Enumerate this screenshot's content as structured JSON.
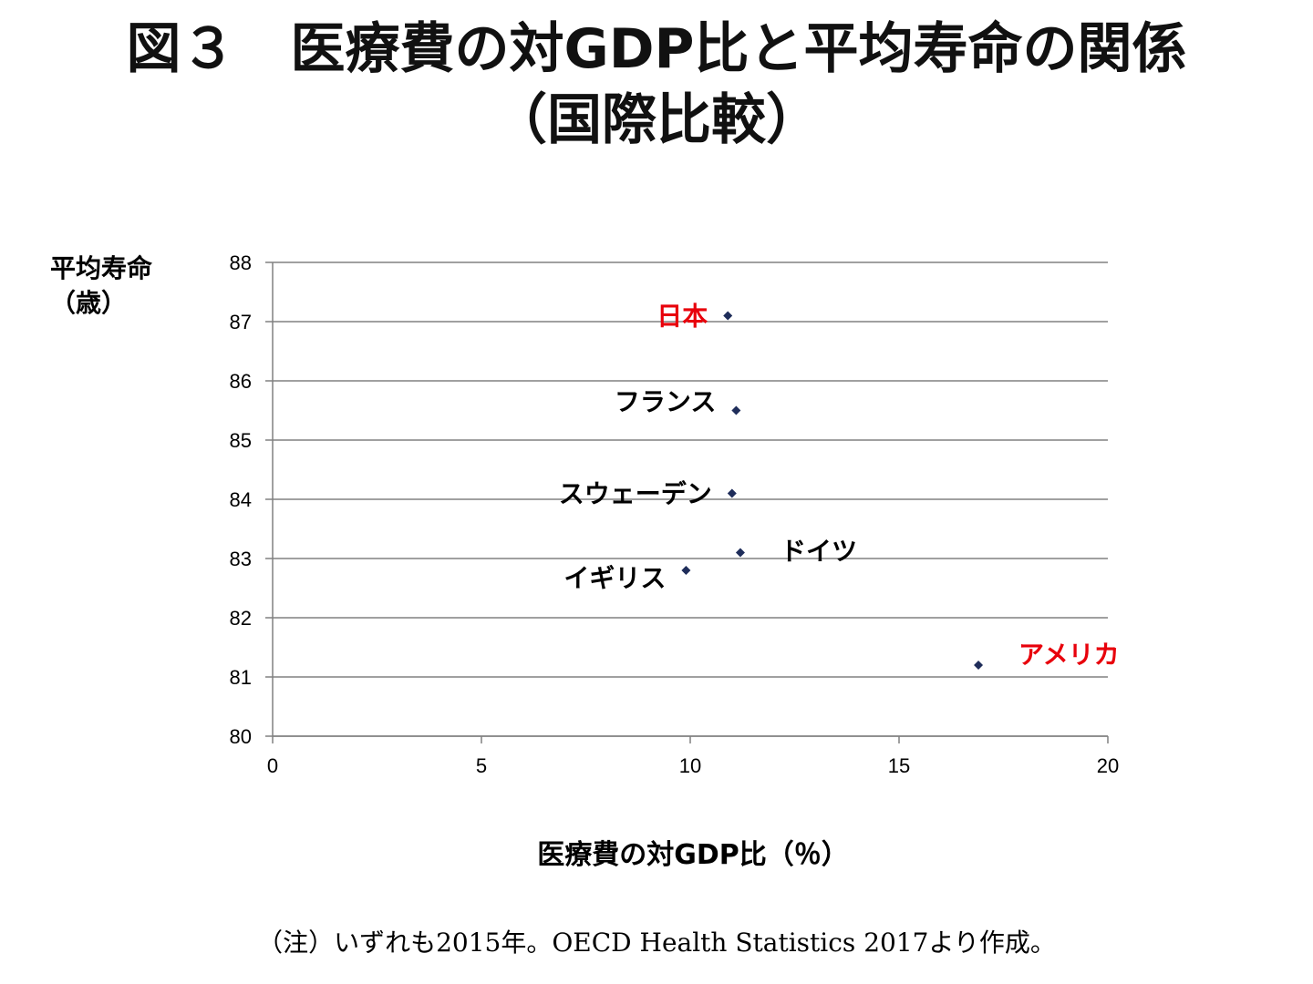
{
  "title": {
    "line1": "図３　医療費の対GDP比と平均寿命の関係",
    "line2": "（国際比較）"
  },
  "note": "（注）いずれも2015年。OECD Health Statistics 2017より作成。",
  "colors": {
    "highlight": "#e8000b",
    "normal": "#000000",
    "marker": "#1f2d5a",
    "grid": "#808080"
  },
  "chart_data": {
    "type": "scatter",
    "xlabel": "医療費の対GDP比（％）",
    "ylabel": [
      "平均寿命",
      "（歳）"
    ],
    "xlim": [
      0,
      20
    ],
    "ylim": [
      80,
      88
    ],
    "xticks": [
      0,
      5,
      10,
      15,
      20
    ],
    "yticks": [
      80,
      81,
      82,
      83,
      84,
      85,
      86,
      87,
      88
    ],
    "grid": "horizontal",
    "points": [
      {
        "label": "日本",
        "x": 10.9,
        "y": 87.1,
        "highlight": true,
        "label_side": "left"
      },
      {
        "label": "フランス",
        "x": 11.1,
        "y": 85.5,
        "highlight": false,
        "label_side": "left"
      },
      {
        "label": "スウェーデン",
        "x": 11.0,
        "y": 84.1,
        "highlight": false,
        "label_side": "left"
      },
      {
        "label": "ドイツ",
        "x": 11.2,
        "y": 83.1,
        "highlight": false,
        "label_side": "right"
      },
      {
        "label": "イギリス",
        "x": 9.9,
        "y": 82.8,
        "highlight": false,
        "label_side": "left"
      },
      {
        "label": "アメリカ",
        "x": 16.9,
        "y": 81.2,
        "highlight": true,
        "label_side": "right"
      }
    ]
  }
}
